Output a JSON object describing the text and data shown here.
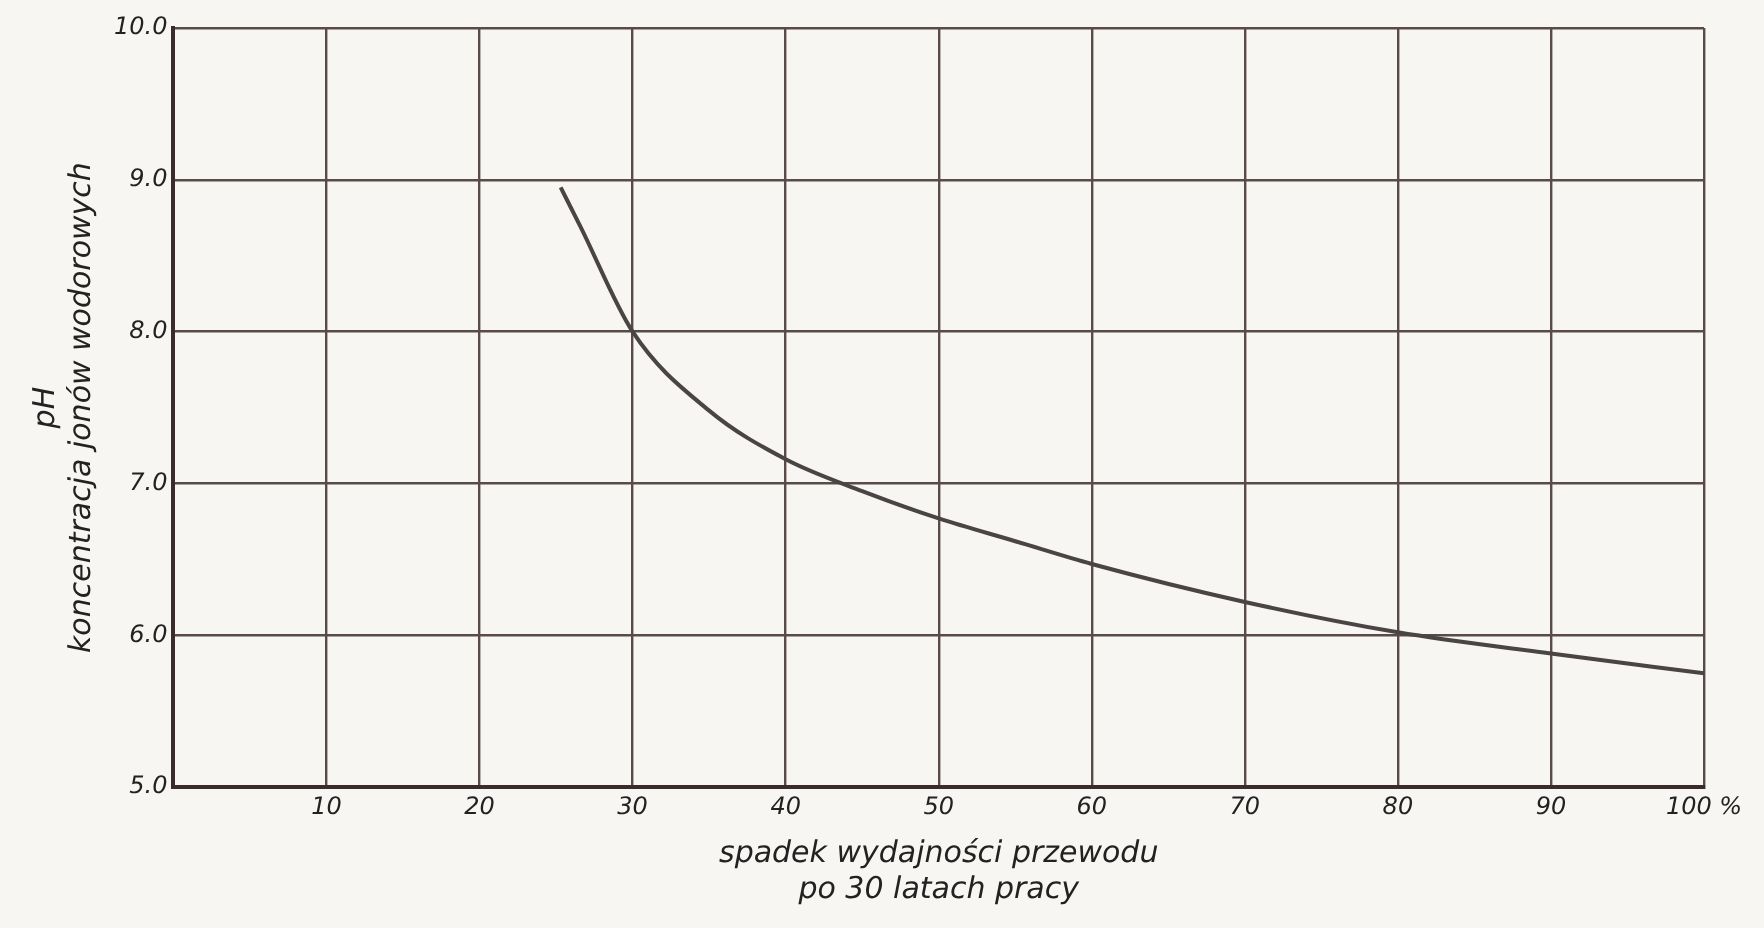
{
  "chart_data": {
    "type": "line",
    "xlabel": "spadek wydajności przewodu\npo 30 latach pracy",
    "ylabel": "pH\nkoncentracja jonów wodorowych",
    "series": [
      {
        "color": "#4a4444",
        "x": [
          25.3,
          26.6,
          30,
          35,
          40,
          45,
          50,
          55,
          60,
          70,
          80,
          90,
          100
        ],
        "values": [
          8.95,
          8.69,
          8.0,
          7.48,
          7.16,
          6.95,
          6.77,
          6.62,
          6.47,
          6.22,
          6.02,
          5.88,
          5.75
        ]
      }
    ],
    "xlim": [
      0,
      100
    ],
    "xticks": [
      {
        "value": 0,
        "label": null
      },
      10,
      20,
      30,
      40,
      50,
      60,
      70,
      80,
      90,
      {
        "value": 100,
        "label": "100 %"
      }
    ],
    "ylim": [
      5,
      10
    ],
    "yticks": [
      {
        "value": 5,
        "label": "5.0"
      },
      {
        "value": 6,
        "label": "6.0"
      },
      {
        "value": 7,
        "label": "7.0"
      },
      {
        "value": 8,
        "label": "8.0"
      },
      {
        "value": 9,
        "label": "9.0"
      },
      {
        "value": 10,
        "label": "10.0"
      }
    ],
    "grid": true,
    "legend": false,
    "marker": "none",
    "line_style": "solid"
  }
}
